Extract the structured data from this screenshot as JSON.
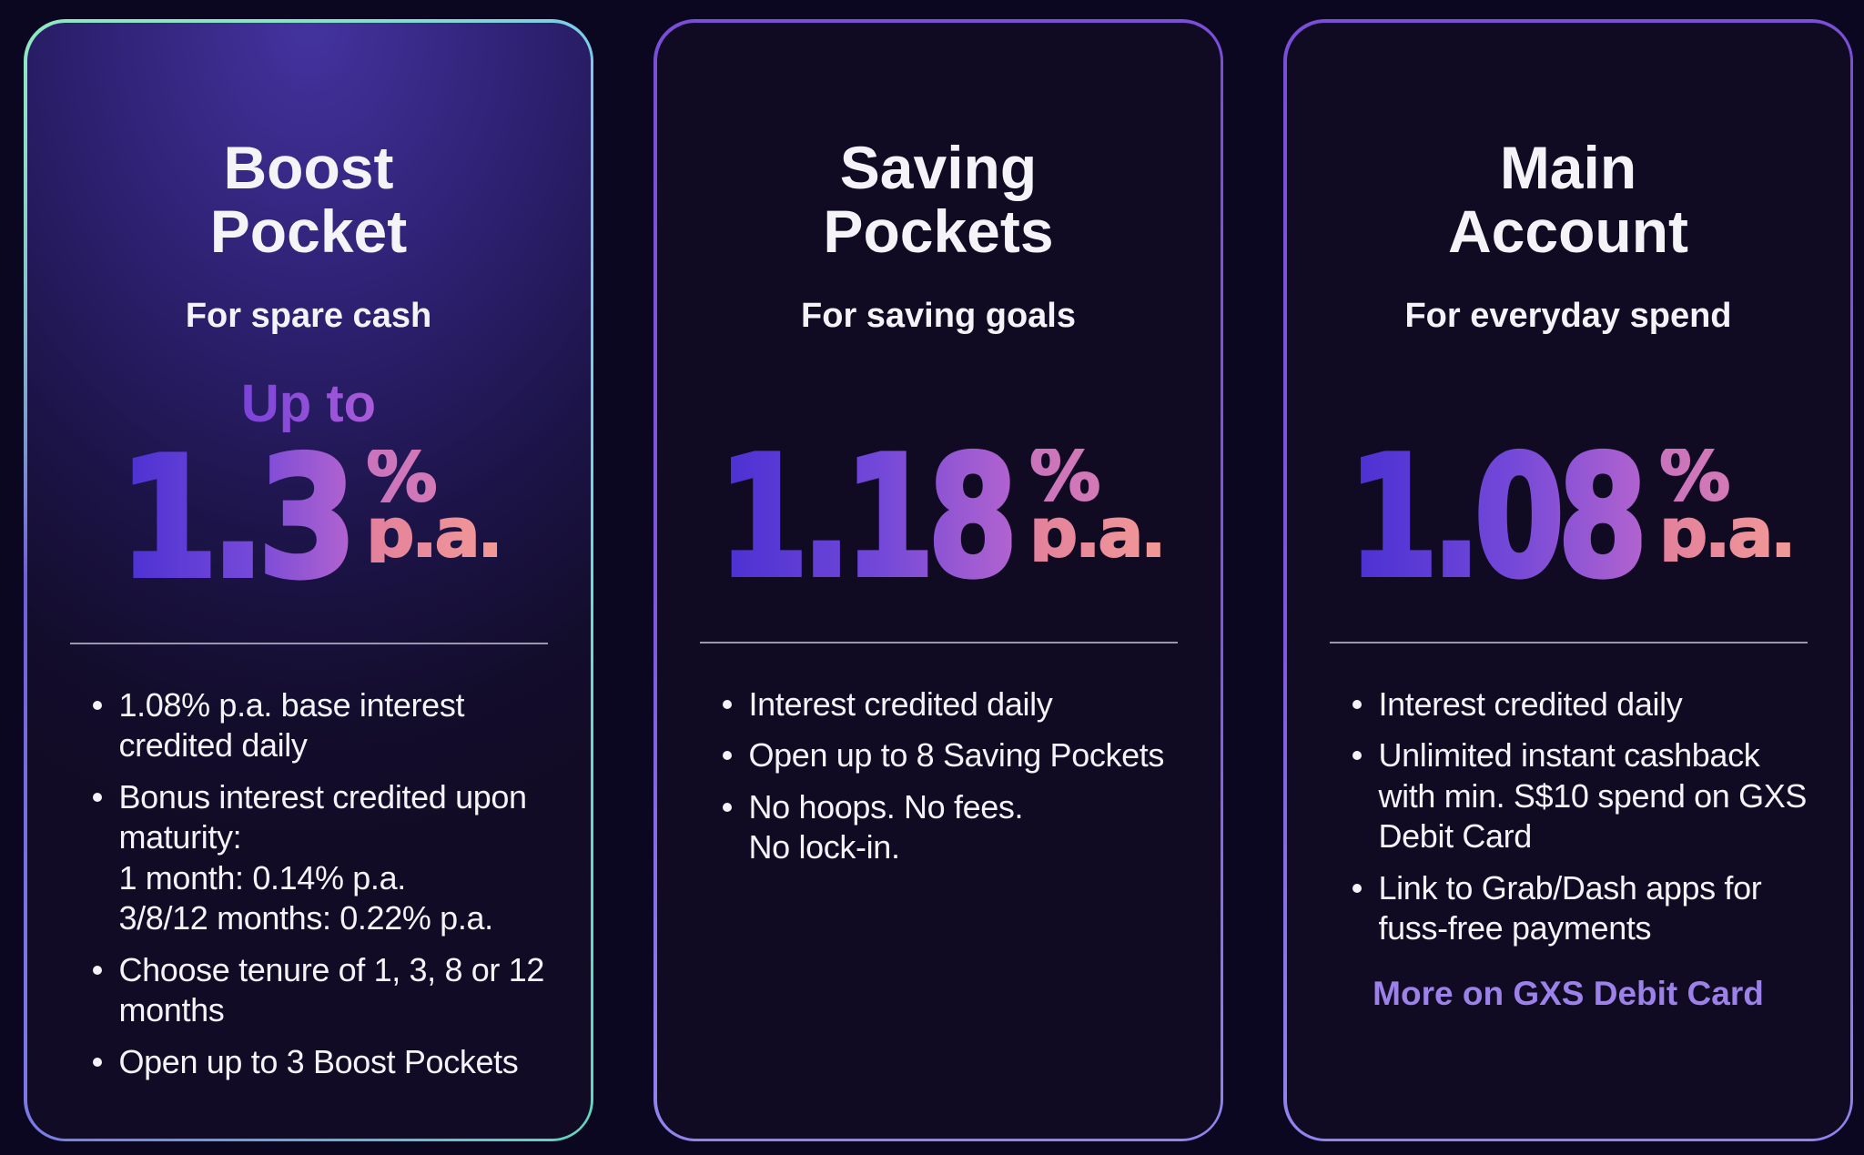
{
  "theme": {
    "page_bg": "#0b0720",
    "card_bg": "#100a23",
    "text": "#f4f3f7",
    "divider": "#9a97ae",
    "link": "#9c82e8",
    "rate_gradient": [
      "#4a30d2",
      "#7348d8",
      "#b163cf",
      "#dc7fae",
      "#f29a97"
    ],
    "boost_border_colors": [
      "#86e4c6",
      "#7cc9ea",
      "#5fd9c0",
      "#7b79e4",
      "#6f5fd8",
      "#8fe7c2"
    ],
    "purple_border_colors": [
      "#7a4ed6",
      "#8f85ec"
    ]
  },
  "cards": [
    {
      "name": "Boost Pocket",
      "title": "Boost\nPocket",
      "subtitle": "For spare cash",
      "rate_prefix": "Up to",
      "rate_value": "1.3",
      "rate_percent": "%",
      "rate_pa": "p.a.",
      "bullets": [
        "1.08% p.a. base interest\ncredited daily",
        "Bonus interest credited upon\nmaturity:\n1 month: 0.14% p.a.\n3/8/12 months: 0.22% p.a.",
        "Choose tenure of 1, 3, 8 or 12\nmonths",
        "Open up to 3 Boost Pockets"
      ]
    },
    {
      "name": "Saving Pockets",
      "title": "Saving\nPockets",
      "subtitle": "For saving goals",
      "rate_value": "1.18",
      "rate_percent": "%",
      "rate_pa": "p.a.",
      "bullets": [
        "Interest credited daily",
        "Open up to 8 Saving Pockets",
        "No hoops. No fees.\nNo lock-in."
      ]
    },
    {
      "name": "Main Account",
      "title": "Main\nAccount",
      "subtitle": "For everyday spend",
      "rate_value": "1.08",
      "rate_percent": "%",
      "rate_pa": "p.a.",
      "bullets": [
        "Interest credited daily",
        "Unlimited instant cashback\nwith min. S$10 spend on GXS\nDebit Card",
        "Link to Grab/Dash apps for\nfuss-free payments"
      ],
      "link_label": "More on GXS Debit Card"
    }
  ]
}
